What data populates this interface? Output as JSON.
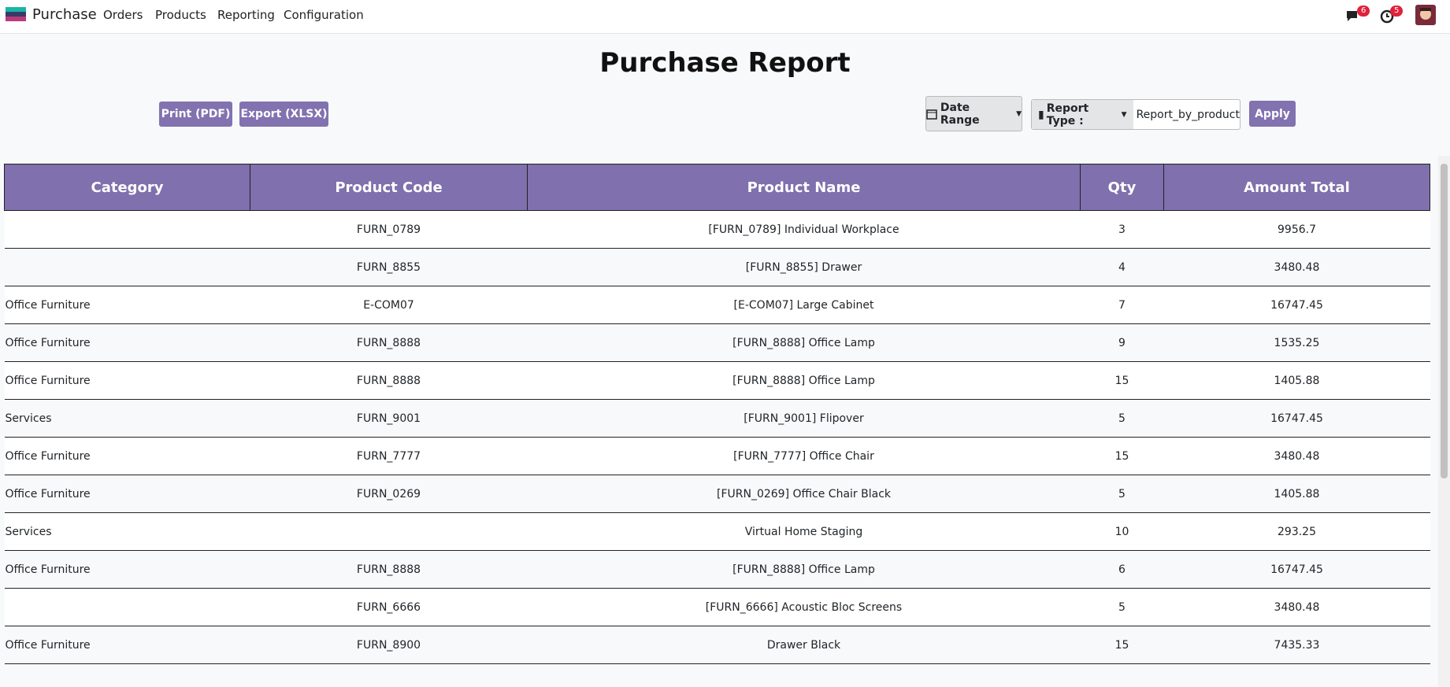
{
  "navbar": {
    "app": "Purchase",
    "menu": [
      "Orders",
      "Products",
      "Reporting",
      "Configuration"
    ],
    "messages_badge": 6,
    "activities_badge": 5
  },
  "header": {
    "title": "Purchase Report"
  },
  "toolbar": {
    "print": "Print (PDF)",
    "export": "Export (XLSX)",
    "date_range": "Date Range",
    "report_type_label": "Report Type :",
    "report_type_value": "Report_by_product",
    "apply": "Apply"
  },
  "table": {
    "columns": [
      "Category",
      "Product Code",
      "Product Name",
      "Qty",
      "Amount Total"
    ],
    "rows": [
      [
        null,
        "FURN_0789",
        "[FURN_0789] Individual Workplace",
        3,
        9956.7
      ],
      [
        null,
        "FURN_8855",
        "[FURN_8855] Drawer",
        4,
        3480.48
      ],
      [
        "Office Furniture",
        "E-COM07",
        "[E-COM07] Large Cabinet",
        7,
        16747.45
      ],
      [
        "Office Furniture",
        "FURN_8888",
        "[FURN_8888] Office Lamp",
        9,
        1535.25
      ],
      [
        "Office Furniture",
        "FURN_8888",
        "[FURN_8888] Office Lamp",
        15,
        1405.88
      ],
      [
        "Services",
        "FURN_9001",
        "[FURN_9001] Flipover",
        5,
        16747.45
      ],
      [
        "Office Furniture",
        "FURN_7777",
        "[FURN_7777] Office Chair",
        15,
        3480.48
      ],
      [
        "Office Furniture",
        "FURN_0269",
        "[FURN_0269] Office Chair Black",
        5,
        1405.88
      ],
      [
        "Services",
        null,
        "Virtual Home Staging",
        10,
        293.25
      ],
      [
        "Office Furniture",
        "FURN_8888",
        "[FURN_8888] Office Lamp",
        6,
        16747.45
      ],
      [
        null,
        "FURN_6666",
        "[FURN_6666] Acoustic Bloc Screens",
        5,
        3480.48
      ],
      [
        "Office Furniture",
        "FURN_8900",
        "Drawer Black",
        15,
        7435.33
      ]
    ]
  }
}
